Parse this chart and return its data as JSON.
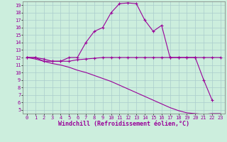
{
  "xlabel": "Windchill (Refroidissement éolien,°C)",
  "x_values": [
    0,
    1,
    2,
    3,
    4,
    5,
    6,
    7,
    8,
    9,
    10,
    11,
    12,
    13,
    14,
    15,
    16,
    17,
    18,
    19,
    20,
    21,
    22,
    23
  ],
  "line1_y": [
    12,
    12,
    11.5,
    11.5,
    11.5,
    12,
    12,
    14,
    15.5,
    16,
    18,
    19.2,
    19.3,
    19.2,
    17,
    15.5,
    16.3,
    12,
    12,
    12,
    12,
    9,
    6.3,
    null
  ],
  "line2_y": [
    12,
    12,
    11.8,
    11.5,
    11.5,
    11.5,
    11.7,
    11.8,
    11.9,
    12,
    12,
    12,
    12,
    12,
    12,
    12,
    12,
    12,
    12,
    12,
    12,
    12,
    12,
    12
  ],
  "line3_y": [
    12,
    11.8,
    11.5,
    11.2,
    11.0,
    10.7,
    10.3,
    10.0,
    9.6,
    9.2,
    8.8,
    8.3,
    7.8,
    7.3,
    6.8,
    6.3,
    5.8,
    5.3,
    4.9,
    4.6,
    4.5,
    4.4,
    4.5,
    4.5
  ],
  "line_color": "#990099",
  "bg_color": "#cceedd",
  "grid_color": "#aacccc",
  "ylim": [
    4.5,
    19.5
  ],
  "xlim": [
    -0.5,
    23.5
  ],
  "yticks": [
    5,
    6,
    7,
    8,
    9,
    10,
    11,
    12,
    13,
    14,
    15,
    16,
    17,
    18,
    19
  ],
  "xticks": [
    0,
    1,
    2,
    3,
    4,
    5,
    6,
    7,
    8,
    9,
    10,
    11,
    12,
    13,
    14,
    15,
    16,
    17,
    18,
    19,
    20,
    21,
    22,
    23
  ],
  "tick_fontsize": 5.0,
  "xlabel_fontsize": 6.0,
  "marker": "+"
}
